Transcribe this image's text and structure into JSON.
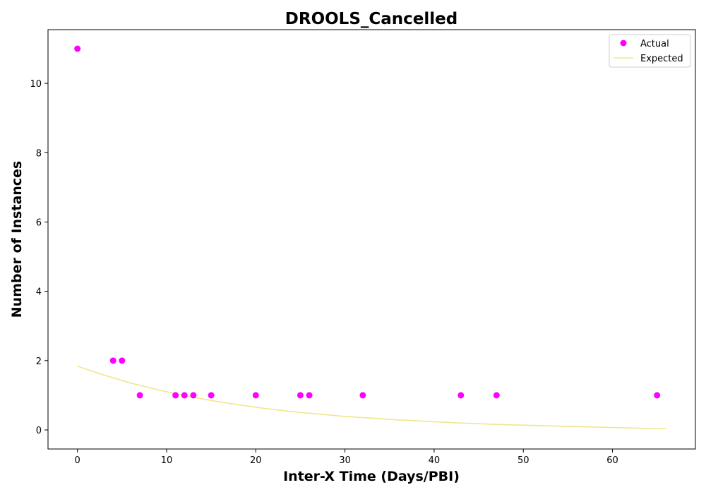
{
  "chart_data": {
    "type": "scatter",
    "title": "DROOLS_Cancelled",
    "xlabel": "Inter-X Time (Days/PBI)",
    "ylabel": "Number of Instances",
    "xlim": [
      -3.3,
      69.3
    ],
    "ylim": [
      -0.55,
      11.55
    ],
    "x_ticks": [
      0,
      10,
      20,
      30,
      40,
      50,
      60
    ],
    "y_ticks": [
      0,
      2,
      4,
      6,
      8,
      10
    ],
    "grid": false,
    "legend_position": "top-right",
    "series": [
      {
        "name": "Actual",
        "kind": "scatter",
        "color": "#ff00ff",
        "points": [
          [
            0,
            11
          ],
          [
            4,
            2
          ],
          [
            5,
            2
          ],
          [
            7,
            1
          ],
          [
            11,
            1
          ],
          [
            12,
            1
          ],
          [
            13,
            1
          ],
          [
            15,
            1
          ],
          [
            20,
            1
          ],
          [
            25,
            1
          ],
          [
            26,
            1
          ],
          [
            32,
            1
          ],
          [
            43,
            1
          ],
          [
            47,
            1
          ],
          [
            65,
            1
          ]
        ]
      },
      {
        "name": "Expected",
        "kind": "line",
        "color": "#f0e68c",
        "points": [
          [
            0,
            1.84
          ],
          [
            3,
            1.58
          ],
          [
            6,
            1.35
          ],
          [
            9,
            1.16
          ],
          [
            12,
            0.99
          ],
          [
            15,
            0.85
          ],
          [
            18,
            0.73
          ],
          [
            21,
            0.62
          ],
          [
            24,
            0.53
          ],
          [
            27,
            0.46
          ],
          [
            30,
            0.39
          ],
          [
            33,
            0.34
          ],
          [
            36,
            0.29
          ],
          [
            39,
            0.25
          ],
          [
            42,
            0.21
          ],
          [
            45,
            0.18
          ],
          [
            48,
            0.15
          ],
          [
            51,
            0.13
          ],
          [
            54,
            0.11
          ],
          [
            57,
            0.09
          ],
          [
            60,
            0.07
          ],
          [
            63,
            0.05
          ],
          [
            66,
            0.04
          ]
        ]
      }
    ]
  }
}
